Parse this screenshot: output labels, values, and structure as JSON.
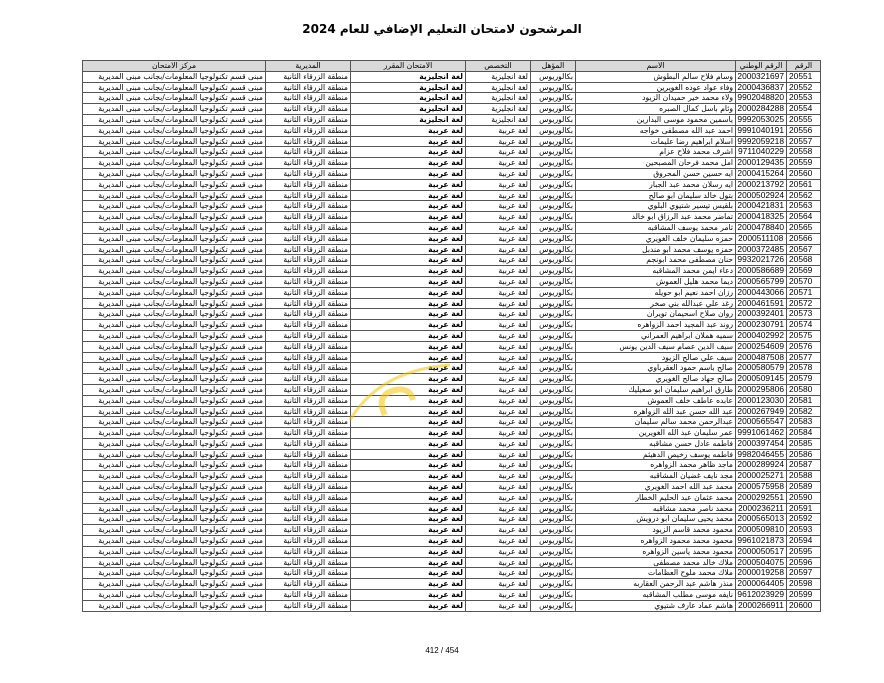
{
  "title": "المرشحون لامتحان التعليم الإضافي للعام 2024",
  "headers": [
    "الرقم",
    "الرقم الوطني",
    "الاسم",
    "المؤهل",
    "التخصص",
    "الامتحان المقرر",
    "المديرية",
    "مركز الامتحان"
  ],
  "common": {
    "qualification": "بكالوريوس",
    "directorate": "منطقة الزرقاء الثانية",
    "center": "مبنى قسم تكنولوجيا المعلومات/بجانب مبنى المديرية"
  },
  "rows": [
    [
      "20551",
      "2000321697",
      "وسام فلاح سالم البطوش",
      "لغة انجليزية"
    ],
    [
      "20552",
      "2000436837",
      "وفاء عواد عوده الغويرين",
      "لغة انجليزية"
    ],
    [
      "20553",
      "9902048820",
      "ولاء محمد خير حميدان الزيود",
      "لغة انجليزية"
    ],
    [
      "20554",
      "2000284288",
      "وئام باسل كمال الصبره",
      "لغة انجليزية"
    ],
    [
      "20555",
      "9992053025",
      "ياسمين محمود موسى البدارين",
      "لغة انجليزية"
    ],
    [
      "20556",
      "9991040191",
      "احمد عبد الله مصطفى خواجه",
      "لغة عربية"
    ],
    [
      "20557",
      "9992059218",
      "اسلام ابراهيم رضا عليمات",
      "لغة عربية"
    ],
    [
      "20558",
      "9711040229",
      "اشرف محمد فلاح عزام",
      "لغة عربية"
    ],
    [
      "20559",
      "2000129435",
      "امل محمد فرحان المصبحين",
      "لغة عربية"
    ],
    [
      "20560",
      "2000415264",
      "ايه حسين حسن المحروق",
      "لغة عربية"
    ],
    [
      "20561",
      "2000213792",
      "ايه رسلان محمد عبد الجبار",
      "لغة عربية"
    ],
    [
      "20562",
      "2000502924",
      "بتول خالد سليمان ابو صالح",
      "لغة عربية"
    ],
    [
      "20563",
      "2000421831",
      "بلقيس تيسير شتيوي البلوي",
      "لغة عربية"
    ],
    [
      "20564",
      "2000418325",
      "تماضر محمد عبد الرزاق ابو خالد",
      "لغة عربية"
    ],
    [
      "20565",
      "2000478840",
      "ثامر محمد يوسف المشاقبه",
      "لغة عربية"
    ],
    [
      "20566",
      "2000511108",
      "حمزه سليمان خلف الغويري",
      "لغة عربية"
    ],
    [
      "20567",
      "2000372485",
      "حمزه يوسف محمد ابو مندبل",
      "لغة عربية"
    ],
    [
      "20568",
      "9932021726",
      "حنان مصطفى محمد ابونجم",
      "لغة عربية"
    ],
    [
      "20569",
      "2000586689",
      "دعاء ايمن محمد المشاقبه",
      "لغة عربية"
    ],
    [
      "20570",
      "2000565799",
      "ديما محمد هليل العموش",
      "لغة عربية"
    ],
    [
      "20571",
      "2000443066",
      "رزان احمد نعيم ابو حويله",
      "لغة عربية"
    ],
    [
      "20572",
      "2000461591",
      "رغد علي عبدالله بني صخر",
      "لغة عربية"
    ],
    [
      "20573",
      "2000392401",
      "روان صلاح اسحيمان تويران",
      "لغة عربية"
    ],
    [
      "20574",
      "2000230791",
      "روند عبد المجيد احمد الزواهره",
      "لغة عربية"
    ],
    [
      "20575",
      "2000402992",
      "سميه هملان ابراهيم العمراني",
      "لغة عربية"
    ],
    [
      "20576",
      "2000254609",
      "سيف الدين عصام سيف الدين يونس",
      "لغة عربية"
    ],
    [
      "20577",
      "2000487508",
      "سيف علي صالح الزيود",
      "لغة عربية"
    ],
    [
      "20578",
      "2000580579",
      "صالح باسم حمود العقرباوي",
      "لغة عربية"
    ],
    [
      "20579",
      "2000509145",
      "صالح جهاد صالح الغويري",
      "لغة عربية"
    ],
    [
      "20580",
      "2000295806",
      "طارق ابراهيم سليمان ابو صعيليك",
      "لغة عربية"
    ],
    [
      "20581",
      "2000123030",
      "عابده عاطف خلف العموش",
      "لغة عربية"
    ],
    [
      "20582",
      "2000267949",
      "عبد الله حسن عبد الله الزواهره",
      "لغة عربية"
    ],
    [
      "20583",
      "2000565547",
      "عبدالرحمن محمد سالم سليمان",
      "لغة عربية"
    ],
    [
      "20584",
      "9991061462",
      "عمر سليمان عبد الله الغويرين",
      "لغة عربية"
    ],
    [
      "20585",
      "2000397454",
      "فاطمه عادل حسن مشاقبه",
      "لغة عربية"
    ],
    [
      "20586",
      "9982046455",
      "فاطمه يوسف رخيص الدهيثم",
      "لغة عربية"
    ],
    [
      "20587",
      "2000289924",
      "ماجد ظاهر محمد الزواهره",
      "لغة عربية"
    ],
    [
      "20588",
      "2000025271",
      "مجد نايف غضيان المشاقبه",
      "لغة عربية"
    ],
    [
      "20589",
      "2000575958",
      "محمد عبد الله احمد الغويري",
      "لغة عربية"
    ],
    [
      "20590",
      "2000292551",
      "محمد عثمان عبد الحليم الخطار",
      "لغة عربية"
    ],
    [
      "20591",
      "2000236211",
      "محمد ناصر محمد مشاقبه",
      "لغة عربية"
    ],
    [
      "20592",
      "2000565013",
      "محمد يحيى سليمان ابو درويش",
      "لغة عربية"
    ],
    [
      "20593",
      "2000509810",
      "محمود محمد قاسم الزيود",
      "لغة عربية"
    ],
    [
      "20594",
      "9961021873",
      "محمود محمد محمود الزواهره",
      "لغة عربية"
    ],
    [
      "20595",
      "2000050517",
      "محمود محمد ياسين الزواهره",
      "لغة عربية"
    ],
    [
      "20596",
      "2000504075",
      "ملاك خالد محمد مصطفى",
      "لغة عربية"
    ],
    [
      "20597",
      "2000019258",
      "ملاك محمد ملوح العظامات",
      "لغة عربية"
    ],
    [
      "20598",
      "2000064405",
      "منذر هاشم عبد الرحمن العقاربه",
      "لغة عربية"
    ],
    [
      "20599",
      "9612023929",
      "نايفه موسى مطلب المشاقبه",
      "لغة عربية"
    ],
    [
      "20600",
      "2000266911",
      "هاشم عماد عارف شتيوي",
      "لغة عربية"
    ]
  ],
  "footer": "412 / 454",
  "colors": {
    "header_bg": "#d9d9d9",
    "border": "#555555",
    "watermark": "#f5c400"
  }
}
